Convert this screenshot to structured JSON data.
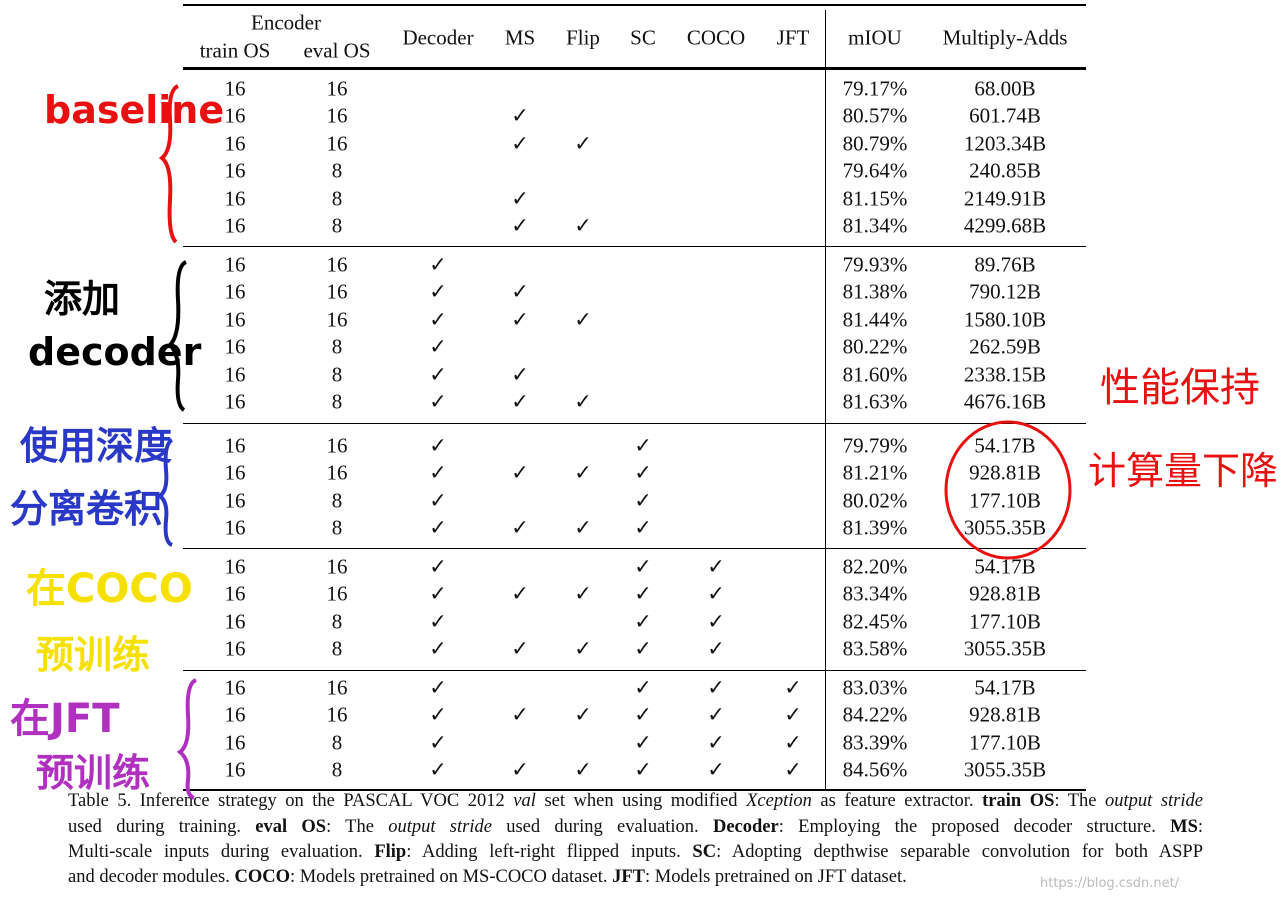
{
  "table": {
    "header": {
      "group": "Encoder",
      "sub": [
        "train OS",
        "eval OS"
      ],
      "columns": [
        "Decoder",
        "MS",
        "Flip",
        "SC",
        "COCO",
        "JFT",
        "mIOU",
        "Multiply-Adds"
      ]
    },
    "groups": [
      [
        [
          16,
          16,
          null,
          null,
          null,
          null,
          null,
          null,
          "79.17%",
          "68.00B"
        ],
        [
          16,
          16,
          null,
          "✓",
          null,
          null,
          null,
          null,
          "80.57%",
          "601.74B"
        ],
        [
          16,
          16,
          null,
          "✓",
          "✓",
          null,
          null,
          null,
          "80.79%",
          "1203.34B"
        ],
        [
          16,
          8,
          null,
          null,
          null,
          null,
          null,
          null,
          "79.64%",
          "240.85B"
        ],
        [
          16,
          8,
          null,
          "✓",
          null,
          null,
          null,
          null,
          "81.15%",
          "2149.91B"
        ],
        [
          16,
          8,
          null,
          "✓",
          "✓",
          null,
          null,
          null,
          "81.34%",
          "4299.68B"
        ]
      ],
      [
        [
          16,
          16,
          "✓",
          null,
          null,
          null,
          null,
          null,
          "79.93%",
          "89.76B"
        ],
        [
          16,
          16,
          "✓",
          "✓",
          null,
          null,
          null,
          null,
          "81.38%",
          "790.12B"
        ],
        [
          16,
          16,
          "✓",
          "✓",
          "✓",
          null,
          null,
          null,
          "81.44%",
          "1580.10B"
        ],
        [
          16,
          8,
          "✓",
          null,
          null,
          null,
          null,
          null,
          "80.22%",
          "262.59B"
        ],
        [
          16,
          8,
          "✓",
          "✓",
          null,
          null,
          null,
          null,
          "81.60%",
          "2338.15B"
        ],
        [
          16,
          8,
          "✓",
          "✓",
          "✓",
          null,
          null,
          null,
          "81.63%",
          "4676.16B"
        ]
      ],
      [
        [
          16,
          16,
          "✓",
          null,
          null,
          "✓",
          null,
          null,
          "79.79%",
          "54.17B"
        ],
        [
          16,
          16,
          "✓",
          "✓",
          "✓",
          "✓",
          null,
          null,
          "81.21%",
          "928.81B"
        ],
        [
          16,
          8,
          "✓",
          null,
          null,
          "✓",
          null,
          null,
          "80.02%",
          "177.10B"
        ],
        [
          16,
          8,
          "✓",
          "✓",
          "✓",
          "✓",
          null,
          null,
          "81.39%",
          "3055.35B"
        ]
      ],
      [
        [
          16,
          16,
          "✓",
          null,
          null,
          "✓",
          "✓",
          null,
          "82.20%",
          "54.17B"
        ],
        [
          16,
          16,
          "✓",
          "✓",
          "✓",
          "✓",
          "✓",
          null,
          "83.34%",
          "928.81B"
        ],
        [
          16,
          8,
          "✓",
          null,
          null,
          "✓",
          "✓",
          null,
          "82.45%",
          "177.10B"
        ],
        [
          16,
          8,
          "✓",
          "✓",
          "✓",
          "✓",
          "✓",
          null,
          "83.58%",
          "3055.35B"
        ]
      ],
      [
        [
          16,
          16,
          "✓",
          null,
          null,
          "✓",
          "✓",
          "✓",
          "83.03%",
          "54.17B"
        ],
        [
          16,
          16,
          "✓",
          "✓",
          "✓",
          "✓",
          "✓",
          "✓",
          "84.22%",
          "928.81B"
        ],
        [
          16,
          8,
          "✓",
          null,
          null,
          "✓",
          "✓",
          "✓",
          "83.39%",
          "177.10B"
        ],
        [
          16,
          8,
          "✓",
          "✓",
          "✓",
          "✓",
          "✓",
          "✓",
          "84.56%",
          "3055.35B"
        ]
      ]
    ]
  },
  "caption": [
    [
      "Table 5. Inference strategy on the PASCAL VOC 2012 ",
      "val",
      " set when using modified ",
      "Xception",
      " as feature extractor. ",
      "train OS",
      ": The ",
      "output stride"
    ],
    [
      "used during training. ",
      "eval OS",
      ": The ",
      "output stride",
      " used during evaluation. ",
      "Decoder",
      ": Employing the proposed decoder structure. ",
      "MS",
      ":"
    ],
    [
      "Multi-scale inputs during evaluation. ",
      "Flip",
      ": Adding left-right flipped inputs. ",
      "SC",
      ": Adopting depthwise separable convolution for both ASPP"
    ],
    [
      "and decoder modules. ",
      "COCO",
      ": Models pretrained on MS-COCO dataset. ",
      "JFT",
      ": Models pretrained on JFT dataset."
    ]
  ],
  "annotations": {
    "baseline": "baseline",
    "decoder": [
      "添加",
      "decoder"
    ],
    "separable": [
      "使用深度",
      "分离卷积"
    ],
    "coco": [
      "在COCO",
      "预训练"
    ],
    "jft": [
      "在JFT",
      "预训练"
    ],
    "note": [
      "性能保持",
      "计算量下降"
    ]
  },
  "watermark": "https://blog.csdn.net/"
}
